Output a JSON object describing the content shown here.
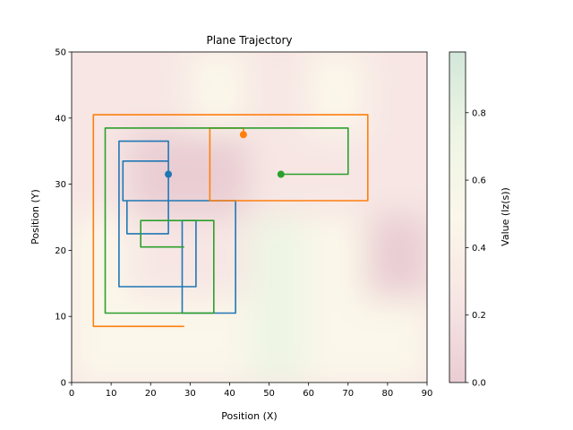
{
  "chart_data": {
    "type": "line",
    "title": "Plane Trajectory",
    "xlabel": "Position (X)",
    "ylabel": "Position (Y)",
    "xlim": [
      0,
      90
    ],
    "ylim": [
      0,
      50
    ],
    "xticks": [
      "0",
      "10",
      "20",
      "30",
      "40",
      "50",
      "60",
      "70",
      "80",
      "90"
    ],
    "yticks": [
      "0",
      "10",
      "20",
      "30",
      "40",
      "50"
    ],
    "grid": false,
    "colors": {
      "blue": "#1f77b4",
      "orange": "#ff7f0e",
      "green": "#2ca02c"
    },
    "series": [
      {
        "color": "#1f77b4",
        "points": [
          [
            24.5,
            31.5
          ],
          [
            24.5,
            36.5
          ],
          [
            12,
            36.5
          ],
          [
            12,
            14.5
          ],
          [
            31.5,
            14.5
          ],
          [
            31.5,
            24.5
          ],
          [
            28,
            24.5
          ],
          [
            28,
            10.5
          ],
          [
            41.5,
            10.5
          ],
          [
            41.5,
            27.5
          ],
          [
            13,
            27.5
          ],
          [
            13,
            33.5
          ],
          [
            24.5,
            33.5
          ],
          [
            24.5,
            22.5
          ],
          [
            14,
            22.5
          ],
          [
            14,
            27.5
          ]
        ],
        "end_marker": [
          24.5,
          31.5
        ]
      },
      {
        "color": "#ff7f0e",
        "points": [
          [
            43.5,
            37.5
          ],
          [
            43.5,
            38.5
          ],
          [
            35,
            38.5
          ],
          [
            35,
            27.5
          ],
          [
            75,
            27.5
          ],
          [
            75,
            40.5
          ],
          [
            5.5,
            40.5
          ],
          [
            5.5,
            8.5
          ],
          [
            28.5,
            8.5
          ]
        ],
        "end_marker": [
          43.5,
          37.5
        ]
      },
      {
        "color": "#2ca02c",
        "points": [
          [
            53,
            31.5
          ],
          [
            70,
            31.5
          ],
          [
            70,
            38.5
          ],
          [
            8.5,
            38.5
          ],
          [
            8.5,
            10.5
          ],
          [
            36,
            10.5
          ],
          [
            36,
            24.5
          ],
          [
            17.5,
            24.5
          ],
          [
            17.5,
            20.5
          ],
          [
            28.5,
            20.5
          ]
        ],
        "end_marker": [
          53,
          31.5
        ]
      }
    ],
    "colorbar": {
      "label": "Value (Iz(s))",
      "range": [
        0.0,
        0.98
      ],
      "ticks": [
        "0.0",
        "0.2",
        "0.4",
        "0.6",
        "0.8"
      ],
      "colormap": [
        "#e9cdd3",
        "#f7e6e4",
        "#fbf7ea",
        "#eef5e4",
        "#d3e7da"
      ]
    },
    "heatmap": {
      "grid_x": 6,
      "grid_y": 4,
      "values": [
        [
          0.15,
          0.22,
          0.55,
          0.3,
          0.6,
          0.25
        ],
        [
          0.2,
          0.1,
          0.12,
          0.18,
          0.35,
          0.2
        ],
        [
          0.45,
          0.3,
          0.25,
          0.85,
          0.6,
          0.1
        ],
        [
          0.6,
          0.55,
          0.45,
          0.7,
          0.4,
          0.55
        ]
      ]
    }
  }
}
